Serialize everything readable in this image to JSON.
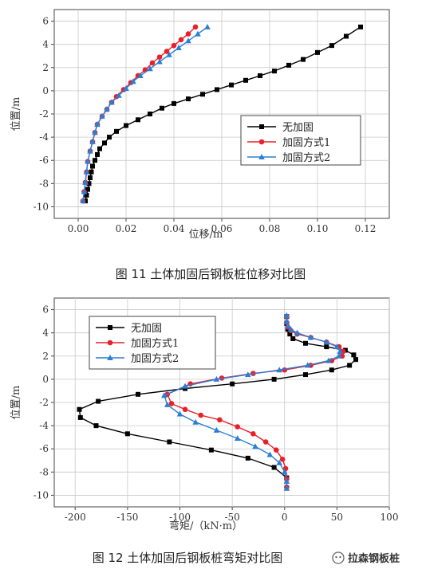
{
  "watermark": "拉森钢板桩",
  "chart_data": [
    {
      "type": "line",
      "caption": "图 11   土体加固后钢板桩位移对比图",
      "xlabel": "位移/m",
      "ylabel": "位置/m",
      "xlim": [
        -0.01,
        0.13
      ],
      "ylim": [
        -11,
        7
      ],
      "xticks": [
        0.0,
        0.02,
        0.04,
        0.06,
        0.08,
        0.1,
        0.12
      ],
      "xtick_labels": [
        "0.00",
        "0.02",
        "0.04",
        "0.06",
        "0.08",
        "0.10",
        "0.12"
      ],
      "yticks": [
        -10,
        -8,
        -6,
        -4,
        -2,
        0,
        2,
        4,
        6
      ],
      "ytick_labels": [
        "-10",
        "-8",
        "-6",
        "-4",
        "-2",
        "0",
        "2",
        "4",
        "6"
      ],
      "grid": true,
      "legend_position": "middle-right",
      "series": [
        {
          "name": "无加固",
          "color": "#000000",
          "marker": "square",
          "x": [
            0.003,
            0.0035,
            0.004,
            0.0045,
            0.005,
            0.0055,
            0.006,
            0.007,
            0.008,
            0.009,
            0.011,
            0.013,
            0.016,
            0.02,
            0.025,
            0.03,
            0.035,
            0.04,
            0.046,
            0.052,
            0.058,
            0.064,
            0.07,
            0.076,
            0.082,
            0.088,
            0.094,
            0.1,
            0.106,
            0.112,
            0.118
          ],
          "y": [
            -9.5,
            -9.0,
            -8.5,
            -8.0,
            -7.5,
            -7.0,
            -6.5,
            -6.0,
            -5.5,
            -5.0,
            -4.5,
            -4.0,
            -3.5,
            -3.0,
            -2.5,
            -2.0,
            -1.5,
            -1.1,
            -0.7,
            -0.3,
            0.1,
            0.5,
            0.9,
            1.3,
            1.7,
            2.2,
            2.7,
            3.3,
            3.9,
            4.7,
            5.5
          ]
        },
        {
          "name": "加固方式1",
          "color": "#e8202a",
          "marker": "circle",
          "x": [
            0.002,
            0.0025,
            0.003,
            0.0035,
            0.004,
            0.005,
            0.006,
            0.007,
            0.008,
            0.01,
            0.012,
            0.014,
            0.016,
            0.019,
            0.022,
            0.025,
            0.028,
            0.031,
            0.034,
            0.037,
            0.04,
            0.043,
            0.046,
            0.049
          ],
          "y": [
            -9.5,
            -8.7,
            -7.9,
            -7.0,
            -6.1,
            -5.2,
            -4.4,
            -3.6,
            -2.9,
            -2.2,
            -1.6,
            -1.0,
            -0.5,
            0.1,
            0.7,
            1.3,
            1.8,
            2.4,
            2.9,
            3.4,
            3.9,
            4.4,
            4.9,
            5.5
          ]
        },
        {
          "name": "加固方式2",
          "color": "#2a7fd4",
          "marker": "triangle",
          "x": [
            0.002,
            0.0025,
            0.003,
            0.0035,
            0.004,
            0.005,
            0.006,
            0.007,
            0.008,
            0.01,
            0.012,
            0.014,
            0.017,
            0.02,
            0.023,
            0.026,
            0.03,
            0.034,
            0.038,
            0.042,
            0.046,
            0.05,
            0.054
          ],
          "y": [
            -9.5,
            -8.7,
            -7.9,
            -7.0,
            -6.1,
            -5.2,
            -4.4,
            -3.6,
            -2.9,
            -2.2,
            -1.6,
            -1.0,
            -0.4,
            0.2,
            0.8,
            1.3,
            1.9,
            2.5,
            3.1,
            3.7,
            4.3,
            4.9,
            5.5
          ]
        }
      ]
    },
    {
      "type": "line",
      "caption": "图 12   土体加固后钢板桩弯矩对比图",
      "xlabel": "弯矩/（kN·m）",
      "ylabel": "位置/m",
      "xlim": [
        -220,
        100
      ],
      "ylim": [
        -11,
        7
      ],
      "xticks": [
        -200,
        -150,
        -100,
        -50,
        0,
        50,
        100
      ],
      "xtick_labels": [
        "-200",
        "-150",
        "-100",
        "-50",
        "0",
        "50",
        "100"
      ],
      "yticks": [
        -10,
        -8,
        -6,
        -4,
        -2,
        0,
        2,
        4,
        6
      ],
      "ytick_labels": [
        "-10",
        "-8",
        "-6",
        "-4",
        "-2",
        "0",
        "2",
        "4",
        "6"
      ],
      "grid": true,
      "legend_position": "top-left",
      "series": [
        {
          "name": "无加固",
          "color": "#000000",
          "marker": "square",
          "x": [
            2,
            2,
            3,
            5,
            8,
            20,
            40,
            58,
            66,
            68,
            62,
            45,
            20,
            -10,
            -50,
            -95,
            -140,
            -178,
            -196,
            -195,
            -180,
            -150,
            -110,
            -70,
            -35,
            -10,
            2
          ],
          "y": [
            5.4,
            4.8,
            4.3,
            3.9,
            3.5,
            3.1,
            2.8,
            2.5,
            2.1,
            1.7,
            1.2,
            0.8,
            0.4,
            0.0,
            -0.4,
            -0.8,
            -1.3,
            -1.9,
            -2.6,
            -3.3,
            -4.0,
            -4.7,
            -5.4,
            -6.1,
            -6.8,
            -7.6,
            -8.5
          ]
        },
        {
          "name": "加固方式1",
          "color": "#e8202a",
          "marker": "circle",
          "x": [
            2,
            2,
            3,
            6,
            12,
            25,
            40,
            52,
            56,
            55,
            45,
            25,
            0,
            -30,
            -60,
            -90,
            -112,
            -108,
            -95,
            -80,
            -62,
            -45,
            -30,
            -18,
            -8,
            -2,
            1,
            2,
            2
          ],
          "y": [
            5.4,
            4.9,
            4.5,
            4.2,
            3.9,
            3.6,
            3.2,
            2.8,
            2.4,
            2.0,
            1.6,
            1.2,
            0.8,
            0.5,
            0.1,
            -0.4,
            -1.3,
            -2.1,
            -2.6,
            -3.1,
            -3.5,
            -4.1,
            -4.7,
            -5.4,
            -6.1,
            -6.9,
            -7.7,
            -8.6,
            -9.3
          ]
        },
        {
          "name": "加固方式2",
          "color": "#2a7fd4",
          "marker": "triangle",
          "x": [
            2,
            2,
            3,
            6,
            12,
            25,
            40,
            50,
            53,
            52,
            42,
            22,
            -5,
            -35,
            -65,
            -95,
            -115,
            -112,
            -100,
            -85,
            -65,
            -45,
            -28,
            -14,
            -5,
            0,
            2,
            2
          ],
          "y": [
            5.5,
            5.0,
            4.6,
            4.3,
            4.0,
            3.6,
            3.2,
            2.8,
            2.4,
            2.0,
            1.6,
            1.2,
            0.8,
            0.4,
            0.0,
            -0.6,
            -1.4,
            -2.2,
            -3.0,
            -3.7,
            -4.4,
            -5.1,
            -5.8,
            -6.5,
            -7.2,
            -8.0,
            -8.8,
            -9.4
          ]
        }
      ]
    }
  ]
}
